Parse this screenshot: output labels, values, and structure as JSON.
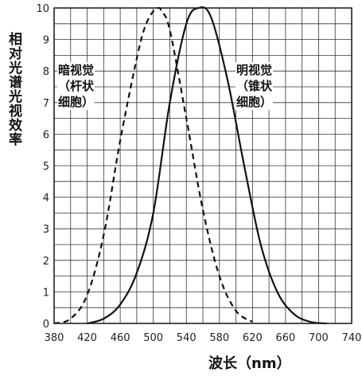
{
  "chart_data": {
    "type": "line",
    "title": "",
    "ylabel": "相对光谱光视效率",
    "xlabel": "波长（nm）",
    "xlim": [
      380,
      740
    ],
    "ylim": [
      0,
      10
    ],
    "x_ticks": [
      "380",
      "420",
      "460",
      "500",
      "540",
      "580",
      "620",
      "660",
      "700",
      "740"
    ],
    "y_ticks": [
      "0",
      "1",
      "2",
      "3",
      "4",
      "5",
      "6",
      "7",
      "8",
      "9",
      "10"
    ],
    "grid": true,
    "annotations": {
      "scotopic": [
        "暗视觉",
        "（杆状",
        "细胞）"
      ],
      "photopic": [
        "明视觉",
        "（锥状",
        "细胞）"
      ]
    },
    "series": [
      {
        "style": "dashed",
        "x": [
          380,
          400,
          420,
          440,
          460,
          480,
          490,
          500,
          507,
          510,
          520,
          540,
          560,
          580,
          600,
          620
        ],
        "y": [
          0.0,
          0.15,
          0.9,
          2.8,
          5.8,
          8.4,
          9.4,
          9.9,
          10.0,
          9.9,
          9.3,
          6.5,
          3.6,
          1.5,
          0.4,
          0.05
        ]
      },
      {
        "style": "solid",
        "x": [
          420,
          440,
          460,
          480,
          500,
          520,
          540,
          555,
          570,
          590,
          610,
          630,
          650,
          670,
          690,
          710
        ],
        "y": [
          0.0,
          0.15,
          0.6,
          1.6,
          3.5,
          7.0,
          9.5,
          10.0,
          9.7,
          7.7,
          5.0,
          2.5,
          1.0,
          0.3,
          0.05,
          0.0
        ]
      }
    ]
  }
}
